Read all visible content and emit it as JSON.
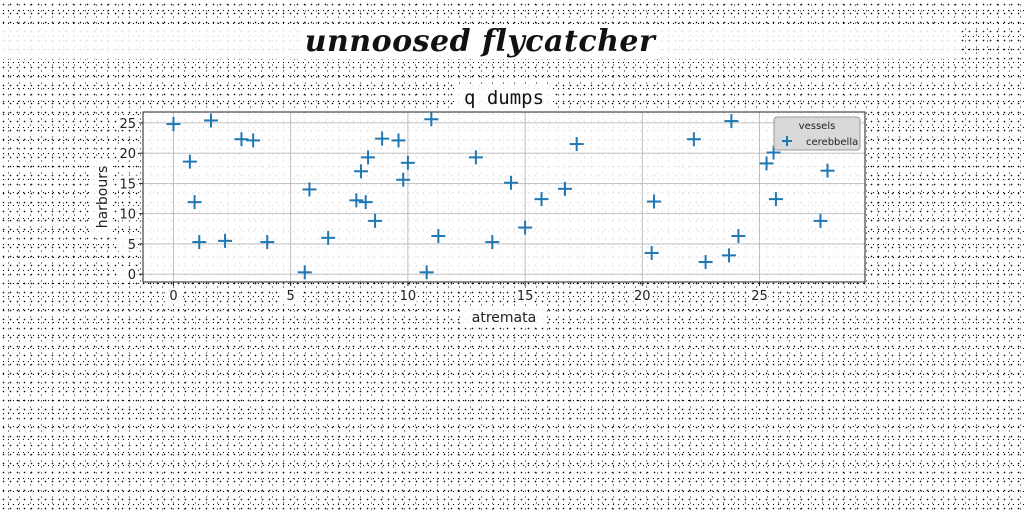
{
  "page": {
    "title": "unnoosed flycatcher"
  },
  "chart_data": {
    "type": "scatter",
    "title": "q dumps",
    "xlabel": "atremata",
    "ylabel": "harbours",
    "xlim": [
      -1.3,
      29.5
    ],
    "ylim": [
      -1.3,
      26.8
    ],
    "xticks": [
      0,
      5,
      10,
      15,
      20,
      25
    ],
    "yticks": [
      0,
      5,
      10,
      15,
      20,
      25
    ],
    "grid": true,
    "legend": {
      "title": "vessels",
      "placement": "top-right",
      "entries": [
        "cerebbella"
      ]
    },
    "series": [
      {
        "name": "cerebbella",
        "marker": "+",
        "color": "#1f77b4",
        "points": [
          [
            0.0,
            24.8
          ],
          [
            0.7,
            18.6
          ],
          [
            0.9,
            11.9
          ],
          [
            1.1,
            5.3
          ],
          [
            1.6,
            25.4
          ],
          [
            2.2,
            5.5
          ],
          [
            2.9,
            22.3
          ],
          [
            3.4,
            22.1
          ],
          [
            4.0,
            5.3
          ],
          [
            5.6,
            0.3
          ],
          [
            5.8,
            14.0
          ],
          [
            6.6,
            6.0
          ],
          [
            7.8,
            12.2
          ],
          [
            8.0,
            17.0
          ],
          [
            8.2,
            11.9
          ],
          [
            8.3,
            19.3
          ],
          [
            8.6,
            8.8
          ],
          [
            8.9,
            22.4
          ],
          [
            9.6,
            22.1
          ],
          [
            9.8,
            15.6
          ],
          [
            10.0,
            18.4
          ],
          [
            10.8,
            0.3
          ],
          [
            11.0,
            25.6
          ],
          [
            11.3,
            6.3
          ],
          [
            12.9,
            19.3
          ],
          [
            13.6,
            5.3
          ],
          [
            14.4,
            15.1
          ],
          [
            15.0,
            7.7
          ],
          [
            15.7,
            12.4
          ],
          [
            16.7,
            14.1
          ],
          [
            17.2,
            21.5
          ],
          [
            20.4,
            3.5
          ],
          [
            20.5,
            12.0
          ],
          [
            22.2,
            22.3
          ],
          [
            22.7,
            2.0
          ],
          [
            23.7,
            3.1
          ],
          [
            23.8,
            25.3
          ],
          [
            24.1,
            6.3
          ],
          [
            25.3,
            18.3
          ],
          [
            25.6,
            20.1
          ],
          [
            25.7,
            12.4
          ],
          [
            27.6,
            8.8
          ],
          [
            27.9,
            17.1
          ]
        ]
      }
    ]
  }
}
